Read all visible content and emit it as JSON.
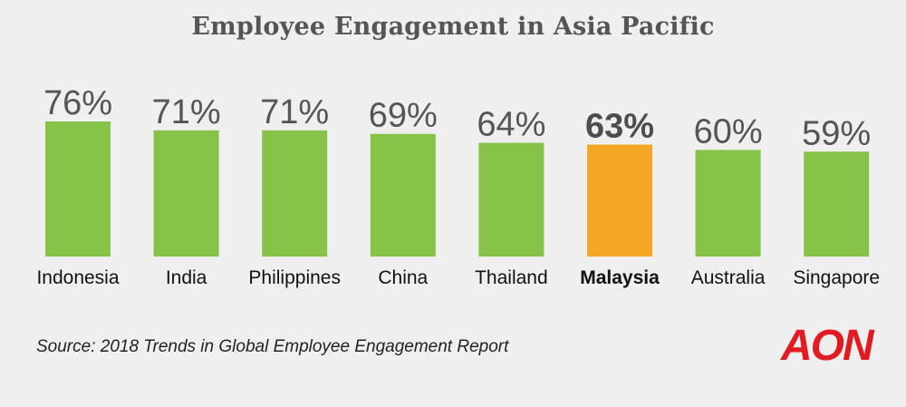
{
  "title": "Employee Engagement in Asia Pacific",
  "source": "Source: 2018 Trends in Global Employee Engagement Report",
  "logo_text": "AON",
  "colors": {
    "bar": "#86c348",
    "highlight_bar": "#f5a623",
    "value_label": "#555555",
    "highlight_value_label": "#4d4d4d",
    "category_label": "#111111",
    "logo": "#e11b22"
  },
  "chart_data": {
    "type": "bar",
    "title": "Employee Engagement in Asia Pacific",
    "categories": [
      "Indonesia",
      "India",
      "Philippines",
      "China",
      "Thailand",
      "Malaysia",
      "Australia",
      "Singapore"
    ],
    "values": [
      76,
      71,
      71,
      69,
      64,
      63,
      60,
      59
    ],
    "value_labels": [
      "76%",
      "71%",
      "71%",
      "69%",
      "64%",
      "63%",
      "60%",
      "59%"
    ],
    "highlight": "Malaysia",
    "unit": "%",
    "xlabel": "",
    "ylabel": "",
    "grid": false,
    "legend": "none"
  }
}
